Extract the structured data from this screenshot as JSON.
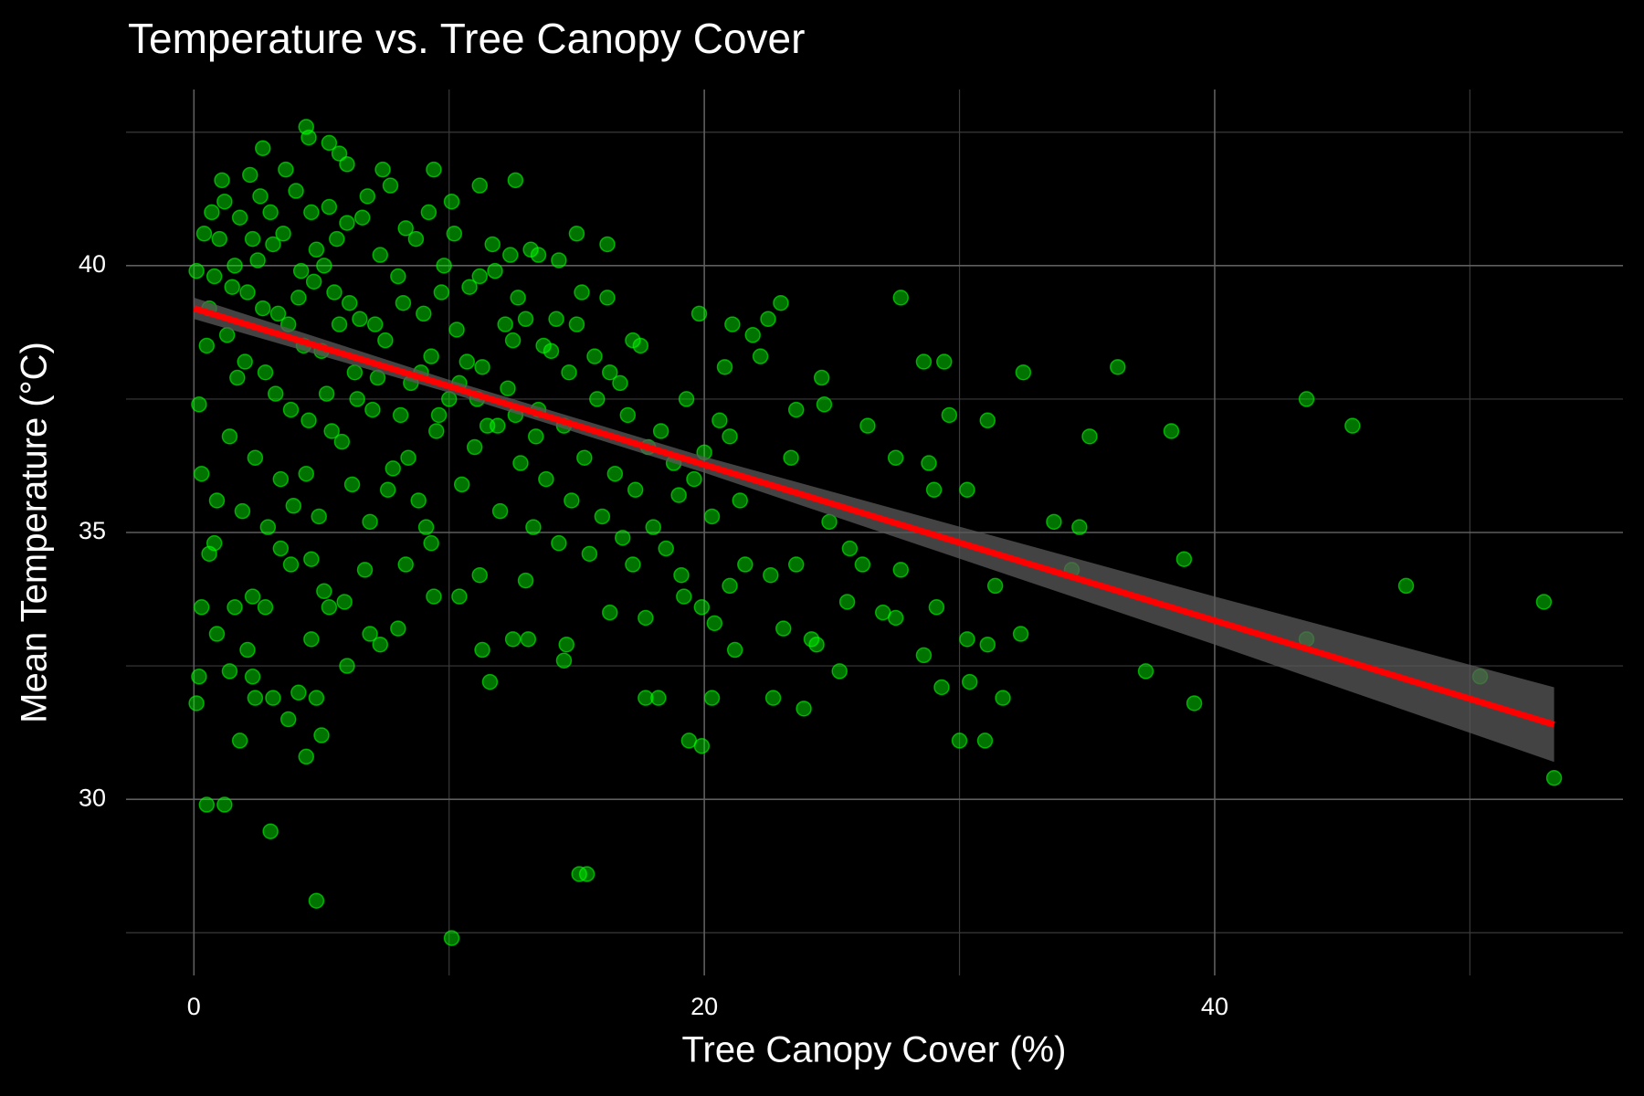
{
  "chart_data": {
    "type": "scatter",
    "title": "Temperature vs. Tree Canopy Cover",
    "xlabel": "Tree Canopy Cover (%)",
    "ylabel": "Mean Temperature (°C)",
    "xlim": [
      -2.66,
      56.0
    ],
    "ylim": [
      26.7,
      43.3
    ],
    "xticks": [
      0,
      20,
      40
    ],
    "yticks": [
      30,
      35,
      40
    ],
    "xminor": [
      10,
      30,
      50
    ],
    "yminor": [
      27.5,
      32.5,
      37.5,
      42.5
    ],
    "grid": true,
    "color": "#00ff00",
    "background": "#000000",
    "x": [
      53.3,
      52.9,
      50.4,
      47.5,
      45.4,
      43.6,
      43.6,
      39.2,
      38.8,
      38.3,
      37.3,
      36.2,
      35.1,
      34.7,
      34.4,
      33.7,
      32.5,
      32.4,
      31.7,
      31.4,
      31.1,
      31.0,
      31.1,
      30.4,
      30.3,
      30.3,
      30.0,
      29.6,
      29.4,
      29.3,
      29.1,
      29.0,
      28.6,
      28.6,
      28.8,
      27.7,
      27.5,
      27.7,
      27.5,
      27.0,
      26.4,
      26.2,
      25.7,
      25.6,
      25.3,
      24.9,
      24.6,
      24.7,
      24.4,
      24.2,
      23.9,
      23.6,
      23.6,
      23.4,
      23.1,
      23.0,
      22.7,
      22.6,
      22.5,
      22.2,
      21.9,
      21.6,
      21.2,
      21.1,
      21.0,
      20.8,
      20.3,
      20.4,
      19.9,
      19.9,
      19.8,
      19.4,
      19.2,
      19.1,
      18.2,
      17.7,
      17.7,
      17.2,
      16.3,
      15.4,
      15.1,
      14.6,
      14.5,
      11.6,
      11.3,
      10.1,
      4.8,
      3.0,
      1.2,
      0.5,
      0.1,
      1.8,
      3.7,
      4.4,
      5.0,
      4.8,
      4.1,
      3.1,
      2.4,
      2.3,
      1.4,
      0.2,
      2.1,
      0.9,
      0.3,
      1.6,
      2.8,
      4.6,
      5.3,
      5.9,
      6.0,
      6.9,
      7.3,
      8.0,
      8.3,
      6.7,
      5.1,
      4.6,
      3.8,
      3.4,
      2.3,
      0.6,
      0.8,
      9.4,
      9.3,
      10.4,
      11.2,
      13.0,
      13.1,
      12.5,
      4.4,
      4.5,
      2.7,
      5.3,
      5.7,
      6.0,
      7.4,
      9.4,
      12.6,
      11.2,
      10.1,
      15.0,
      16.2,
      13.5,
      14.3,
      12.4,
      0.2,
      0.5,
      0.8,
      1.0,
      1.2,
      1.5,
      1.8,
      2.0,
      2.2,
      2.5,
      2.7,
      3.0,
      3.2,
      3.5,
      3.7,
      4.0,
      4.2,
      4.5,
      4.8,
      5.0,
      5.3,
      5.5,
      5.8,
      6.0,
      6.3,
      6.5,
      6.8,
      7.0,
      7.3,
      7.5,
      7.8,
      8.0,
      8.3,
      8.5,
      8.8,
      9.0,
      9.3,
      9.5,
      9.8,
      10.0,
      10.3,
      10.5,
      10.8,
      11.0,
      11.3,
      11.5,
      11.8,
      12.0,
      12.3,
      12.5,
      12.8,
      13.0,
      13.3,
      13.5,
      13.8,
      14.0,
      14.3,
      14.5,
      14.8,
      15.0,
      15.3,
      15.5,
      15.8,
      16.0,
      16.3,
      16.5,
      16.8,
      17.0,
      17.3,
      17.5,
      17.8,
      18.0,
      18.3,
      18.5,
      18.8,
      19.0,
      19.3,
      19.6,
      20.0,
      20.3,
      20.6,
      21.0,
      21.4,
      0.3,
      0.9,
      1.4,
      1.9,
      2.4,
      2.9,
      3.4,
      3.9,
      4.4,
      4.9,
      5.4,
      6.2,
      6.9,
      7.6,
      8.4,
      9.1,
      0.6,
      1.1,
      1.6,
      2.1,
      2.6,
      3.1,
      3.6,
      4.1,
      4.6,
      5.1,
      5.6,
      6.1,
      6.6,
      7.1,
      7.7,
      8.2,
      8.7,
      9.2,
      9.7,
      10.2,
      10.7,
      11.2,
      11.7,
      12.2,
      12.7,
      13.2,
      13.7,
      14.2,
      14.7,
      15.2,
      15.7,
      16.2,
      16.7,
      17.2,
      0.1,
      0.4,
      0.7,
      1.3,
      1.7,
      2.3,
      2.8,
      3.3,
      3.8,
      4.3,
      4.7,
      5.2,
      5.7,
      6.4,
      7.2,
      8.1,
      8.9,
      9.6,
      10.4,
      11.1,
      11.9,
      12.6,
      13.4
    ],
    "values": [
      30.4,
      33.7,
      32.3,
      34.0,
      37.0,
      37.5,
      33.0,
      31.8,
      34.5,
      36.9,
      32.4,
      38.1,
      36.8,
      35.1,
      34.3,
      35.2,
      38.0,
      33.1,
      31.9,
      34.0,
      37.1,
      31.1,
      32.9,
      32.2,
      35.8,
      33.0,
      31.1,
      37.2,
      38.2,
      32.1,
      33.6,
      35.8,
      38.2,
      32.7,
      36.3,
      39.4,
      36.4,
      34.3,
      33.4,
      33.5,
      37.0,
      34.4,
      34.7,
      33.7,
      32.4,
      35.2,
      37.9,
      37.4,
      32.9,
      33.0,
      31.7,
      34.4,
      37.3,
      36.4,
      33.2,
      39.3,
      31.9,
      34.2,
      39.0,
      38.3,
      38.7,
      34.4,
      32.8,
      38.9,
      34.0,
      38.1,
      31.9,
      33.3,
      31.0,
      33.6,
      39.1,
      31.1,
      33.8,
      34.2,
      31.9,
      31.9,
      33.4,
      34.4,
      33.5,
      28.6,
      28.6,
      32.9,
      32.6,
      32.2,
      32.8,
      27.4,
      28.1,
      29.4,
      29.9,
      29.9,
      31.8,
      31.1,
      31.5,
      30.8,
      31.2,
      31.9,
      32.0,
      31.9,
      31.9,
      32.3,
      32.4,
      32.3,
      32.8,
      33.1,
      33.6,
      33.6,
      33.6,
      33.0,
      33.6,
      33.7,
      32.5,
      33.1,
      32.9,
      33.2,
      34.4,
      34.3,
      33.9,
      34.5,
      34.4,
      34.7,
      33.8,
      34.6,
      34.8,
      33.8,
      34.8,
      33.8,
      34.2,
      34.1,
      33.0,
      33.0,
      42.6,
      42.4,
      42.2,
      42.3,
      42.1,
      41.9,
      41.8,
      41.8,
      41.6,
      41.5,
      41.2,
      40.6,
      40.4,
      40.2,
      40.1,
      40.2,
      37.4,
      38.5,
      39.8,
      40.5,
      41.2,
      39.6,
      40.9,
      38.2,
      41.7,
      40.1,
      39.2,
      41.0,
      37.6,
      40.6,
      38.9,
      41.4,
      39.9,
      37.1,
      40.3,
      38.4,
      41.1,
      39.5,
      36.7,
      40.8,
      38.0,
      39.0,
      41.3,
      37.3,
      40.2,
      38.6,
      36.2,
      39.8,
      40.7,
      37.8,
      35.6,
      39.1,
      38.3,
      36.9,
      40.0,
      37.5,
      38.8,
      35.9,
      39.6,
      36.6,
      38.1,
      37.0,
      39.9,
      35.4,
      37.7,
      38.6,
      36.3,
      39.0,
      35.1,
      37.3,
      36.0,
      38.4,
      34.8,
      37.0,
      35.6,
      38.9,
      36.4,
      34.6,
      37.5,
      35.3,
      38.0,
      36.1,
      34.9,
      37.2,
      35.8,
      38.5,
      36.6,
      35.1,
      36.9,
      34.7,
      36.3,
      35.7,
      37.5,
      36.0,
      36.5,
      35.3,
      37.1,
      36.8,
      35.6,
      36.1,
      35.6,
      36.8,
      35.4,
      36.4,
      35.1,
      36.0,
      35.5,
      36.1,
      35.3,
      36.9,
      35.9,
      35.2,
      35.8,
      36.4,
      35.1,
      39.2,
      41.6,
      40.0,
      39.5,
      41.3,
      40.4,
      41.8,
      39.4,
      41.0,
      40.0,
      40.5,
      39.3,
      40.9,
      38.9,
      41.5,
      39.3,
      40.5,
      41.0,
      39.5,
      40.6,
      38.2,
      39.8,
      40.4,
      38.9,
      39.4,
      40.3,
      38.5,
      39.0,
      38.0,
      39.5,
      38.3,
      39.4,
      37.8,
      38.6,
      39.9,
      40.6,
      41.0,
      38.7,
      37.9,
      40.5,
      38.0,
      39.1,
      37.3,
      38.5,
      39.7,
      37.6,
      38.9,
      37.5,
      37.9,
      37.2,
      38.0,
      37.2,
      37.8,
      37.5,
      37.0,
      37.2,
      36.8
    ],
    "trend": {
      "color": "#ff0000",
      "band_color": "#595959",
      "x": [
        0,
        10,
        20,
        30,
        40,
        53.3
      ],
      "values": [
        39.2,
        37.74,
        36.27,
        34.81,
        33.35,
        31.4
      ],
      "lower": [
        39.0,
        37.62,
        36.12,
        34.51,
        32.9,
        30.7
      ],
      "upper": [
        39.4,
        37.86,
        36.42,
        35.11,
        33.8,
        32.1
      ]
    }
  }
}
